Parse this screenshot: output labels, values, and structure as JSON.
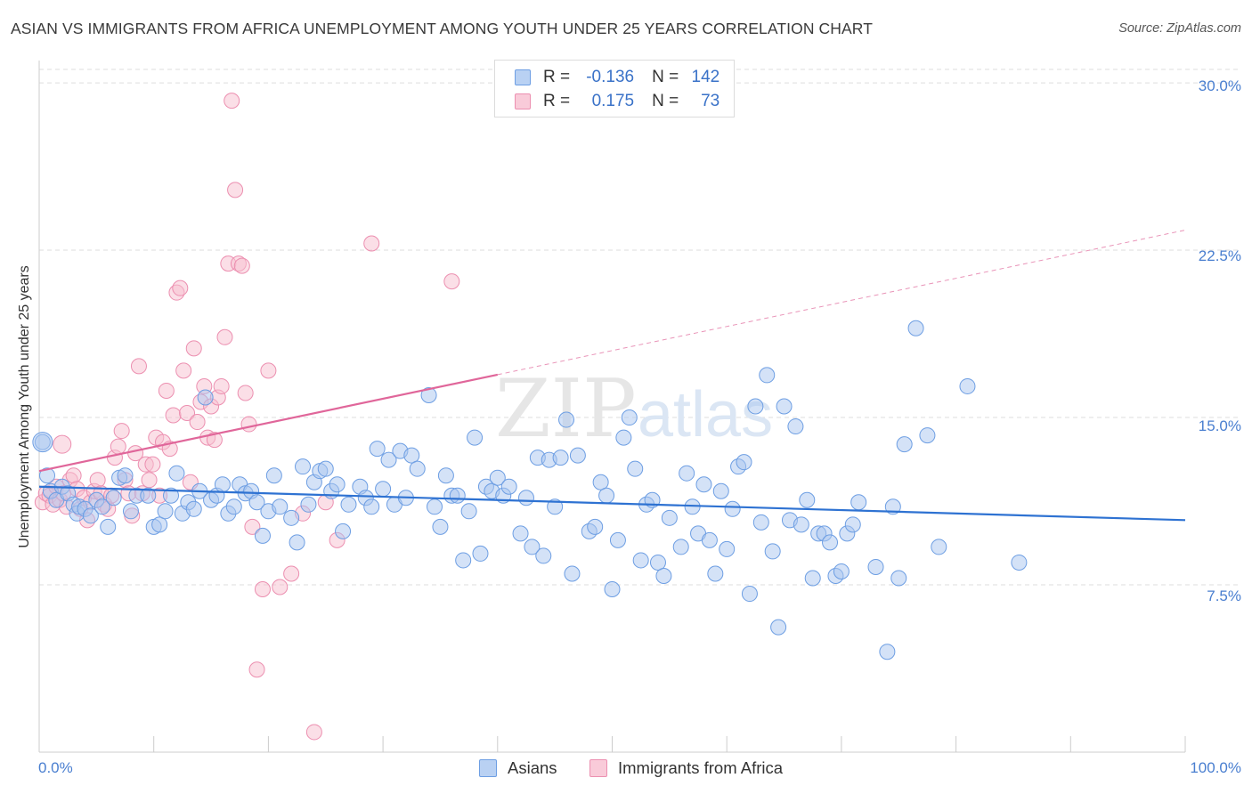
{
  "title": "ASIAN VS IMMIGRANTS FROM AFRICA UNEMPLOYMENT AMONG YOUTH UNDER 25 YEARS CORRELATION CHART",
  "source": "Source: ZipAtlas.com",
  "watermark": {
    "zip": "ZIP",
    "atlas": "atlas"
  },
  "colors": {
    "asian_fill": "#a9c6ef",
    "asian_stroke": "#6d9ee3",
    "asian_line": "#2e72d2",
    "africa_fill": "#f7bfd0",
    "africa_stroke": "#ec8fb0",
    "africa_line": "#e0669a",
    "tick_text": "#4a7fd0",
    "grid": "#dddddd"
  },
  "legend_top": {
    "rows": [
      {
        "r_label": "R =",
        "r_value": "-0.136",
        "n_label": "N =",
        "n_value": "142"
      },
      {
        "r_label": "R =",
        "r_value": "0.175",
        "n_label": "N =",
        "n_value": "73"
      }
    ]
  },
  "legend_bottom": {
    "items": [
      "Asians",
      "Immigrants from Africa"
    ]
  },
  "chart_data": {
    "type": "scatter",
    "title": "ASIAN VS IMMIGRANTS FROM AFRICA UNEMPLOYMENT AMONG YOUTH UNDER 25 YEARS CORRELATION CHART",
    "xlabel": "",
    "ylabel": "Unemployment Among Youth under 25 years",
    "xlim": [
      0,
      100
    ],
    "ylim": [
      0,
      31
    ],
    "x_tick_labels": [
      {
        "value": 0,
        "label": "0.0%"
      },
      {
        "value": 100,
        "label": "100.0%"
      }
    ],
    "y_tick_labels": [
      {
        "value": 7.5,
        "label": "7.5%"
      },
      {
        "value": 15.0,
        "label": "15.0%"
      },
      {
        "value": 22.5,
        "label": "22.5%"
      },
      {
        "value": 30.0,
        "label": "30.0%"
      }
    ],
    "grid": true,
    "series": [
      {
        "name": "Asians",
        "R": -0.136,
        "N": 142,
        "trend": {
          "x": [
            0,
            100
          ],
          "y": [
            11.9,
            10.4
          ],
          "dashed_from": null
        },
        "points": [
          [
            0.3,
            13.9
          ],
          [
            0.7,
            12.4
          ],
          [
            1.0,
            11.7
          ],
          [
            1.5,
            11.3
          ],
          [
            2.0,
            11.9
          ],
          [
            2.5,
            11.6
          ],
          [
            3.0,
            11.1
          ],
          [
            3.3,
            10.7
          ],
          [
            3.5,
            11.0
          ],
          [
            4.0,
            10.9
          ],
          [
            4.5,
            10.6
          ],
          [
            5.0,
            11.3
          ],
          [
            5.5,
            11.0
          ],
          [
            6.0,
            10.1
          ],
          [
            6.5,
            11.4
          ],
          [
            7.0,
            12.3
          ],
          [
            7.5,
            12.4
          ],
          [
            8.0,
            10.8
          ],
          [
            8.5,
            11.5
          ],
          [
            9.5,
            11.5
          ],
          [
            10.0,
            10.1
          ],
          [
            10.5,
            10.2
          ],
          [
            11.0,
            10.8
          ],
          [
            11.5,
            11.5
          ],
          [
            12.0,
            12.5
          ],
          [
            12.5,
            10.7
          ],
          [
            13.0,
            11.2
          ],
          [
            13.5,
            10.9
          ],
          [
            14.0,
            11.7
          ],
          [
            14.5,
            15.9
          ],
          [
            15.0,
            11.3
          ],
          [
            15.5,
            11.5
          ],
          [
            16.0,
            12.0
          ],
          [
            16.5,
            10.7
          ],
          [
            17.0,
            11.0
          ],
          [
            17.5,
            12.0
          ],
          [
            18.0,
            11.6
          ],
          [
            18.5,
            11.7
          ],
          [
            19.0,
            11.2
          ],
          [
            19.5,
            9.7
          ],
          [
            20.0,
            10.8
          ],
          [
            20.5,
            12.4
          ],
          [
            21.0,
            11.0
          ],
          [
            22.0,
            10.5
          ],
          [
            22.5,
            9.4
          ],
          [
            23.0,
            12.8
          ],
          [
            23.5,
            11.1
          ],
          [
            24.0,
            12.1
          ],
          [
            24.5,
            12.6
          ],
          [
            25.0,
            12.7
          ],
          [
            25.5,
            11.7
          ],
          [
            26.0,
            12.0
          ],
          [
            26.5,
            9.9
          ],
          [
            27.0,
            11.1
          ],
          [
            28.0,
            11.9
          ],
          [
            28.5,
            11.4
          ],
          [
            29.0,
            11.0
          ],
          [
            29.5,
            13.6
          ],
          [
            30.0,
            11.8
          ],
          [
            30.5,
            13.1
          ],
          [
            31.0,
            11.1
          ],
          [
            31.5,
            13.5
          ],
          [
            32.0,
            11.4
          ],
          [
            32.5,
            13.3
          ],
          [
            33.0,
            12.7
          ],
          [
            34.0,
            16.0
          ],
          [
            34.5,
            11.0
          ],
          [
            35.0,
            10.1
          ],
          [
            35.5,
            12.4
          ],
          [
            36.0,
            11.5
          ],
          [
            36.5,
            11.5
          ],
          [
            37.0,
            8.6
          ],
          [
            37.5,
            10.8
          ],
          [
            38.0,
            14.1
          ],
          [
            38.5,
            8.9
          ],
          [
            39.0,
            11.9
          ],
          [
            39.5,
            11.7
          ],
          [
            40.0,
            12.3
          ],
          [
            40.5,
            11.5
          ],
          [
            41.0,
            11.9
          ],
          [
            42.0,
            9.8
          ],
          [
            42.5,
            11.4
          ],
          [
            43.0,
            9.2
          ],
          [
            43.5,
            13.2
          ],
          [
            44.0,
            8.8
          ],
          [
            44.5,
            13.1
          ],
          [
            45.0,
            11.0
          ],
          [
            45.5,
            13.2
          ],
          [
            46.0,
            14.9
          ],
          [
            46.5,
            8.0
          ],
          [
            47.0,
            13.3
          ],
          [
            48.0,
            9.9
          ],
          [
            48.5,
            10.1
          ],
          [
            49.0,
            12.1
          ],
          [
            49.5,
            11.5
          ],
          [
            50.0,
            7.3
          ],
          [
            50.5,
            9.5
          ],
          [
            51.0,
            14.1
          ],
          [
            51.5,
            15.0
          ],
          [
            52.0,
            12.7
          ],
          [
            52.5,
            8.6
          ],
          [
            53.0,
            11.1
          ],
          [
            53.5,
            11.3
          ],
          [
            54.0,
            8.5
          ],
          [
            54.5,
            7.9
          ],
          [
            55.0,
            10.5
          ],
          [
            56.0,
            9.2
          ],
          [
            56.5,
            12.5
          ],
          [
            57.0,
            11.0
          ],
          [
            57.5,
            9.8
          ],
          [
            58.0,
            12.0
          ],
          [
            58.5,
            9.5
          ],
          [
            59.0,
            8.0
          ],
          [
            59.5,
            11.7
          ],
          [
            60.0,
            9.1
          ],
          [
            60.5,
            10.9
          ],
          [
            61.0,
            12.8
          ],
          [
            61.5,
            13.0
          ],
          [
            62.0,
            7.1
          ],
          [
            62.5,
            15.5
          ],
          [
            63.0,
            10.3
          ],
          [
            63.5,
            16.9
          ],
          [
            64.0,
            9.0
          ],
          [
            64.5,
            5.6
          ],
          [
            65.0,
            15.5
          ],
          [
            65.5,
            10.4
          ],
          [
            66.0,
            14.6
          ],
          [
            66.5,
            10.2
          ],
          [
            67.0,
            11.3
          ],
          [
            67.5,
            7.8
          ],
          [
            68.0,
            9.8
          ],
          [
            68.5,
            9.8
          ],
          [
            69.0,
            9.4
          ],
          [
            69.5,
            7.9
          ],
          [
            70.0,
            8.1
          ],
          [
            70.5,
            9.8
          ],
          [
            71.0,
            10.2
          ],
          [
            71.5,
            11.2
          ],
          [
            73.0,
            8.3
          ],
          [
            74.0,
            4.5
          ],
          [
            74.5,
            11.0
          ],
          [
            75.0,
            7.8
          ],
          [
            75.5,
            13.8
          ],
          [
            76.5,
            19.0
          ],
          [
            77.5,
            14.2
          ],
          [
            78.5,
            9.2
          ],
          [
            81.0,
            16.4
          ],
          [
            85.5,
            8.5
          ]
        ]
      },
      {
        "name": "Immigrants from Africa",
        "R": 0.175,
        "N": 73,
        "trend": {
          "x": [
            0,
            100
          ],
          "y": [
            12.6,
            23.4
          ],
          "solid_until_x": 40
        },
        "points": [
          [
            0.3,
            11.2
          ],
          [
            0.6,
            11.6
          ],
          [
            0.9,
            11.5
          ],
          [
            1.2,
            11.1
          ],
          [
            1.5,
            11.9
          ],
          [
            1.8,
            11.3
          ],
          [
            2.1,
            11.6
          ],
          [
            2.4,
            11.0
          ],
          [
            2.7,
            12.2
          ],
          [
            3.0,
            12.4
          ],
          [
            3.3,
            11.8
          ],
          [
            3.6,
            10.9
          ],
          [
            3.9,
            11.4
          ],
          [
            4.2,
            10.4
          ],
          [
            4.5,
            11.2
          ],
          [
            4.8,
            11.7
          ],
          [
            5.1,
            12.2
          ],
          [
            5.4,
            11.6
          ],
          [
            5.7,
            11.1
          ],
          [
            6.0,
            10.9
          ],
          [
            6.3,
            11.5
          ],
          [
            6.6,
            13.2
          ],
          [
            6.9,
            13.7
          ],
          [
            7.2,
            14.4
          ],
          [
            7.5,
            12.2
          ],
          [
            7.8,
            11.6
          ],
          [
            8.1,
            10.6
          ],
          [
            8.4,
            13.4
          ],
          [
            8.7,
            17.3
          ],
          [
            9.0,
            11.6
          ],
          [
            9.3,
            12.9
          ],
          [
            9.6,
            12.2
          ],
          [
            9.9,
            12.9
          ],
          [
            10.2,
            14.1
          ],
          [
            10.5,
            11.5
          ],
          [
            10.8,
            13.9
          ],
          [
            11.1,
            16.2
          ],
          [
            11.4,
            13.6
          ],
          [
            11.7,
            15.1
          ],
          [
            12.0,
            20.6
          ],
          [
            12.3,
            20.8
          ],
          [
            12.6,
            17.1
          ],
          [
            12.9,
            15.2
          ],
          [
            13.2,
            12.1
          ],
          [
            13.5,
            18.1
          ],
          [
            13.8,
            14.8
          ],
          [
            14.1,
            15.7
          ],
          [
            14.4,
            16.4
          ],
          [
            14.7,
            14.1
          ],
          [
            15.0,
            15.5
          ],
          [
            15.3,
            14.0
          ],
          [
            15.6,
            15.9
          ],
          [
            15.9,
            16.4
          ],
          [
            16.2,
            18.6
          ],
          [
            16.5,
            21.9
          ],
          [
            16.8,
            29.2
          ],
          [
            17.1,
            25.2
          ],
          [
            17.4,
            21.9
          ],
          [
            17.7,
            21.8
          ],
          [
            18.0,
            16.1
          ],
          [
            18.3,
            14.7
          ],
          [
            18.6,
            10.1
          ],
          [
            19.0,
            3.7
          ],
          [
            19.5,
            7.3
          ],
          [
            20.0,
            17.1
          ],
          [
            21.0,
            7.4
          ],
          [
            22.0,
            8.0
          ],
          [
            23.0,
            10.7
          ],
          [
            24.0,
            0.9
          ],
          [
            25.0,
            11.2
          ],
          [
            26.0,
            9.5
          ],
          [
            29.0,
            22.8
          ],
          [
            36.0,
            21.1
          ]
        ]
      }
    ]
  }
}
